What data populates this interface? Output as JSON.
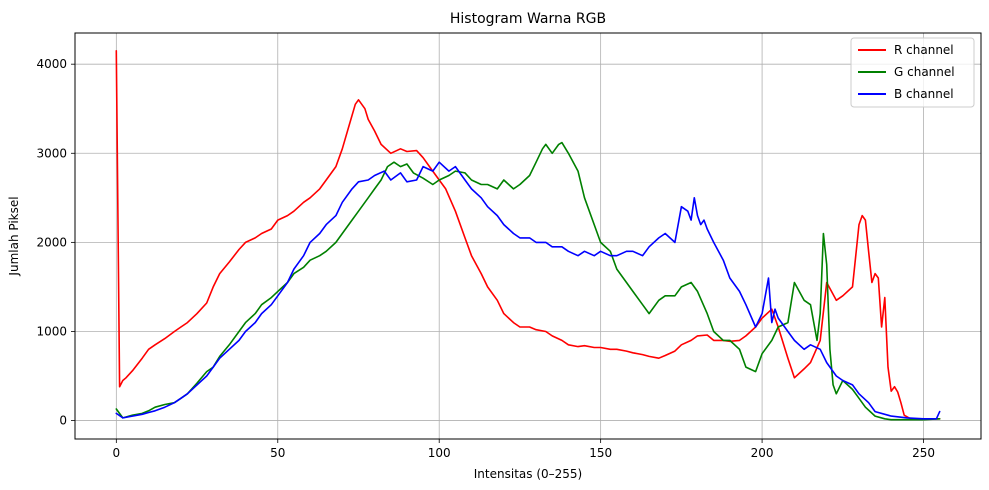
{
  "chart_data": {
    "type": "line",
    "title": "Histogram Warna RGB",
    "xlabel": "Intensitas (0–255)",
    "ylabel": "Jumlah Piksel",
    "xlim": [
      -12.8,
      267.8
    ],
    "ylim": [
      -207,
      4350
    ],
    "xticks": [
      0,
      50,
      100,
      150,
      200,
      250
    ],
    "yticks": [
      0,
      1000,
      2000,
      3000,
      4000
    ],
    "grid": true,
    "legend_position": "top-right",
    "series": [
      {
        "name": "R channel",
        "color": "#ff0000",
        "x": [
          0,
          1,
          2,
          3,
          5,
          8,
          10,
          12,
          15,
          18,
          20,
          22,
          25,
          28,
          30,
          32,
          35,
          38,
          40,
          43,
          45,
          48,
          50,
          53,
          55,
          58,
          60,
          63,
          65,
          68,
          70,
          72,
          74,
          75,
          77,
          78,
          80,
          82,
          85,
          88,
          90,
          93,
          95,
          97,
          100,
          102,
          105,
          108,
          110,
          113,
          115,
          118,
          120,
          123,
          125,
          128,
          130,
          133,
          135,
          138,
          140,
          143,
          145,
          148,
          150,
          153,
          155,
          158,
          160,
          163,
          165,
          168,
          170,
          173,
          175,
          178,
          180,
          183,
          185,
          188,
          190,
          193,
          195,
          198,
          200,
          203,
          205,
          208,
          210,
          213,
          215,
          218,
          220,
          223,
          225,
          228,
          230,
          231,
          232,
          233,
          234,
          235,
          236,
          237,
          238,
          239,
          240,
          241,
          242,
          243,
          244,
          246,
          248,
          250,
          252,
          255
        ],
        "y": [
          4150,
          380,
          450,
          480,
          560,
          700,
          800,
          850,
          920,
          1000,
          1050,
          1100,
          1200,
          1320,
          1500,
          1650,
          1780,
          1920,
          2000,
          2050,
          2100,
          2150,
          2250,
          2300,
          2350,
          2450,
          2500,
          2600,
          2700,
          2850,
          3050,
          3300,
          3550,
          3600,
          3500,
          3380,
          3250,
          3100,
          3000,
          3050,
          3020,
          3030,
          2950,
          2850,
          2700,
          2600,
          2350,
          2050,
          1850,
          1650,
          1500,
          1350,
          1200,
          1100,
          1050,
          1050,
          1020,
          1000,
          950,
          900,
          850,
          830,
          840,
          820,
          820,
          800,
          800,
          780,
          760,
          740,
          720,
          700,
          730,
          780,
          850,
          900,
          950,
          960,
          900,
          900,
          890,
          900,
          950,
          1050,
          1150,
          1250,
          1050,
          700,
          480,
          580,
          650,
          900,
          1550,
          1350,
          1400,
          1500,
          2200,
          2300,
          2250,
          1900,
          1550,
          1650,
          1600,
          1050,
          1380,
          600,
          330,
          380,
          320,
          200,
          60,
          20,
          20,
          20,
          20,
          20
        ]
      },
      {
        "name": "G channel",
        "color": "#008000",
        "x": [
          0,
          2,
          5,
          8,
          10,
          12,
          15,
          18,
          20,
          22,
          25,
          28,
          30,
          32,
          35,
          38,
          40,
          43,
          45,
          48,
          50,
          53,
          55,
          58,
          60,
          63,
          65,
          68,
          70,
          73,
          75,
          78,
          80,
          82,
          84,
          86,
          88,
          90,
          92,
          95,
          98,
          100,
          103,
          105,
          108,
          110,
          113,
          115,
          118,
          120,
          123,
          125,
          128,
          130,
          132,
          133,
          135,
          137,
          138,
          140,
          143,
          145,
          148,
          150,
          153,
          155,
          158,
          160,
          163,
          165,
          168,
          170,
          173,
          175,
          178,
          180,
          183,
          185,
          188,
          190,
          193,
          195,
          198,
          200,
          203,
          205,
          208,
          210,
          213,
          215,
          217,
          218,
          219,
          220,
          221,
          222,
          223,
          225,
          228,
          230,
          232,
          235,
          238,
          240,
          245,
          250,
          255
        ],
        "y": [
          130,
          30,
          60,
          80,
          110,
          150,
          180,
          200,
          250,
          300,
          420,
          550,
          600,
          720,
          850,
          1000,
          1100,
          1200,
          1300,
          1380,
          1450,
          1550,
          1650,
          1720,
          1800,
          1850,
          1900,
          2000,
          2100,
          2250,
          2350,
          2500,
          2600,
          2700,
          2850,
          2900,
          2850,
          2880,
          2780,
          2720,
          2650,
          2700,
          2750,
          2800,
          2780,
          2700,
          2650,
          2650,
          2600,
          2700,
          2600,
          2650,
          2750,
          2900,
          3050,
          3100,
          3000,
          3100,
          3120,
          3000,
          2800,
          2500,
          2200,
          2000,
          1900,
          1700,
          1550,
          1450,
          1300,
          1200,
          1350,
          1400,
          1400,
          1500,
          1550,
          1450,
          1200,
          1000,
          900,
          900,
          800,
          600,
          550,
          750,
          900,
          1050,
          1100,
          1550,
          1350,
          1300,
          900,
          1200,
          2100,
          1750,
          800,
          400,
          300,
          450,
          350,
          250,
          150,
          50,
          20,
          10,
          10,
          10,
          20
        ]
      },
      {
        "name": "B channel",
        "color": "#0000ff",
        "x": [
          0,
          2,
          5,
          8,
          10,
          12,
          15,
          18,
          20,
          22,
          25,
          28,
          30,
          32,
          35,
          38,
          40,
          43,
          45,
          48,
          50,
          53,
          55,
          58,
          60,
          63,
          65,
          68,
          70,
          73,
          75,
          78,
          80,
          83,
          85,
          88,
          90,
          93,
          95,
          98,
          100,
          103,
          105,
          108,
          110,
          113,
          115,
          118,
          120,
          123,
          125,
          128,
          130,
          133,
          135,
          138,
          140,
          143,
          145,
          148,
          150,
          153,
          155,
          158,
          160,
          163,
          165,
          168,
          170,
          173,
          175,
          177,
          178,
          179,
          180,
          181,
          182,
          183,
          185,
          188,
          190,
          193,
          195,
          198,
          200,
          202,
          203,
          204,
          205,
          206,
          208,
          210,
          213,
          215,
          218,
          220,
          223,
          225,
          228,
          230,
          233,
          235,
          240,
          245,
          250,
          254,
          255
        ],
        "y": [
          80,
          30,
          50,
          70,
          90,
          110,
          150,
          200,
          250,
          300,
          400,
          500,
          600,
          700,
          800,
          900,
          1000,
          1100,
          1200,
          1300,
          1400,
          1550,
          1700,
          1850,
          2000,
          2100,
          2200,
          2300,
          2450,
          2600,
          2680,
          2700,
          2750,
          2800,
          2700,
          2780,
          2680,
          2700,
          2850,
          2800,
          2900,
          2800,
          2850,
          2700,
          2600,
          2500,
          2400,
          2300,
          2200,
          2100,
          2050,
          2050,
          2000,
          2000,
          1950,
          1950,
          1900,
          1850,
          1900,
          1850,
          1900,
          1850,
          1850,
          1900,
          1900,
          1850,
          1950,
          2050,
          2100,
          2000,
          2400,
          2350,
          2250,
          2500,
          2300,
          2200,
          2250,
          2150,
          2000,
          1800,
          1600,
          1450,
          1300,
          1050,
          1200,
          1600,
          1100,
          1250,
          1150,
          1100,
          1000,
          900,
          800,
          850,
          800,
          650,
          500,
          450,
          400,
          300,
          200,
          100,
          50,
          30,
          20,
          20,
          100
        ]
      }
    ]
  }
}
